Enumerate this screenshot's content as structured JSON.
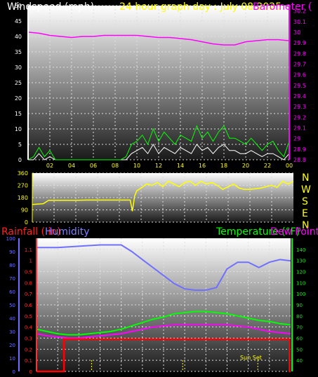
{
  "header": {
    "left_label": "Windspeed (mph)",
    "title": "24 hour graph day : July 08 2025",
    "right_label": "Barometer ("
  },
  "bottom_header": {
    "rain_label": "Rainfall ( in)",
    "humidity_label": "Humidity",
    "temp_label": "Temperature (°F)",
    "dew_label": "Dew Point"
  },
  "compass_letters": [
    "N",
    "W",
    "S",
    "E",
    "N"
  ],
  "sunset_label": "Sun Set",
  "colors": {
    "wind": "#ffffff",
    "gust": "#00ff00",
    "pressure": "#ff00ff",
    "direction": "#ffff00",
    "humidity": "#7070ff",
    "temperature": "#00ff00",
    "dewpoint": "#ff00ff",
    "rain": "#ff0000",
    "rain_axis": "#ff3030",
    "humidity_axis": "#7070ff",
    "temp_axis": "#00ff00"
  },
  "chart_data": [
    {
      "type": "line",
      "name": "wind-and-barometer",
      "xlim": [
        0,
        24
      ],
      "x_ticks": [
        "02",
        "04",
        "06",
        "08",
        "10",
        "12",
        "14",
        "16",
        "18",
        "20",
        "22",
        "00"
      ],
      "y_left_ticks": [
        "0",
        "5",
        "10",
        "15",
        "20",
        "25",
        "30",
        "35",
        "40",
        "45",
        "50"
      ],
      "ylim_left": [
        0,
        50
      ],
      "y_right_ticks": [
        "28.8",
        "28.9",
        "29",
        "29.1",
        "29.2",
        "29.3",
        "29.4",
        "29.5",
        "29.6",
        "29.7",
        "29.8",
        "29.9",
        "30",
        "30.1",
        "30.2"
      ],
      "ylim_right": [
        28.8,
        30.25
      ],
      "series": [
        {
          "name": "barometer",
          "axis": "right",
          "x": [
            0,
            1,
            2,
            3,
            4,
            5,
            6,
            7,
            8,
            9,
            10,
            11,
            12,
            13,
            14,
            15,
            16,
            17,
            18,
            19,
            20,
            21,
            22,
            23,
            24
          ],
          "y": [
            30.0,
            29.99,
            29.97,
            29.96,
            29.95,
            29.96,
            29.96,
            29.97,
            29.97,
            29.97,
            29.97,
            29.96,
            29.95,
            29.95,
            29.94,
            29.93,
            29.91,
            29.89,
            29.88,
            29.88,
            29.91,
            29.92,
            29.93,
            29.93,
            29.92
          ]
        },
        {
          "name": "windspeed",
          "axis": "left",
          "x": [
            0,
            0.5,
            1,
            1.5,
            2,
            2.5,
            3,
            3.5,
            4,
            4.5,
            5,
            5.5,
            6,
            6.5,
            7,
            7.5,
            8,
            8.5,
            9,
            9.5,
            10,
            10.5,
            11,
            11.5,
            12,
            12.5,
            13,
            13.5,
            14,
            14.5,
            15,
            15.5,
            16,
            16.5,
            17,
            17.5,
            18,
            18.5,
            19,
            19.5,
            20,
            20.5,
            21,
            21.5,
            22,
            22.5,
            23,
            23.5,
            24
          ],
          "y": [
            0,
            0,
            2,
            0,
            1,
            0,
            0,
            0,
            0,
            0,
            0,
            0,
            0,
            0,
            0,
            0,
            0,
            0,
            0,
            2,
            3,
            4,
            2,
            5,
            2,
            4,
            3,
            2,
            4,
            3,
            2,
            5,
            3,
            4,
            2,
            4,
            5,
            3,
            3,
            2,
            2,
            3,
            2,
            1,
            2,
            2,
            1,
            0,
            2
          ]
        },
        {
          "name": "gust",
          "axis": "left",
          "x": [
            0,
            0.5,
            1,
            1.5,
            2,
            2.5,
            3,
            3.5,
            4,
            4.5,
            5,
            5.5,
            6,
            6.5,
            7,
            7.5,
            8,
            8.5,
            9,
            9.5,
            10,
            10.5,
            11,
            11.5,
            12,
            12.5,
            13,
            13.5,
            14,
            14.5,
            15,
            15.5,
            16,
            16.5,
            17,
            17.5,
            18,
            18.5,
            19,
            19.5,
            20,
            20.5,
            21,
            21.5,
            22,
            22.5,
            23,
            23.5,
            24
          ],
          "y": [
            0,
            1,
            4,
            1,
            3,
            0,
            0,
            0,
            0,
            0,
            0,
            0,
            0,
            0,
            0,
            0,
            0,
            0,
            1,
            5,
            6,
            8,
            5,
            10,
            6,
            9,
            7,
            5,
            8,
            7,
            6,
            11,
            7,
            9,
            6,
            9,
            11,
            7,
            7,
            6,
            5,
            7,
            5,
            3,
            5,
            6,
            3,
            1,
            6
          ]
        }
      ]
    },
    {
      "type": "line",
      "name": "wind-direction",
      "xlim": [
        0,
        24
      ],
      "y_ticks": [
        "0",
        "90",
        "180",
        "270",
        "360"
      ],
      "ylim": [
        0,
        360
      ],
      "series": [
        {
          "name": "direction",
          "x": [
            0,
            1,
            1.5,
            2,
            3,
            4,
            5,
            6,
            7,
            8,
            9,
            9.2,
            9.4,
            9.6,
            10,
            10.5,
            11,
            11.5,
            12,
            12.5,
            13,
            13.5,
            14,
            14.5,
            15,
            15.5,
            16,
            16.5,
            17,
            17.5,
            18,
            18.5,
            19,
            19.5,
            20,
            20.5,
            21,
            21.5,
            22,
            22.5,
            23,
            23.5,
            24
          ],
          "y": [
            130,
            135,
            160,
            160,
            160,
            160,
            162,
            162,
            162,
            162,
            162,
            80,
            190,
            230,
            250,
            280,
            270,
            290,
            260,
            300,
            280,
            260,
            290,
            300,
            270,
            300,
            280,
            290,
            270,
            240,
            260,
            280,
            250,
            240,
            240,
            245,
            250,
            260,
            270,
            255,
            300,
            280,
            300
          ]
        }
      ]
    },
    {
      "type": "line",
      "name": "temperature-humidity-rain",
      "xlim": [
        0,
        24
      ],
      "y_rain_ticks": [
        "0",
        "0.1",
        "0.2",
        "0.3",
        "0.4",
        "0.5",
        "0.6",
        "0.7",
        "0.8",
        "0.9",
        "1",
        "1.1"
      ],
      "ylim_rain": [
        0,
        1.2
      ],
      "y_humidity_ticks": [
        "0",
        "10",
        "20",
        "30",
        "40",
        "50",
        "60",
        "70",
        "80",
        "90",
        "100"
      ],
      "ylim_humidity": [
        0,
        100
      ],
      "y_temp_ticks": [
        "40",
        "50",
        "60",
        "70",
        "80",
        "90",
        "100",
        "110",
        "120",
        "130",
        "140"
      ],
      "ylim_temp": [
        30,
        150
      ],
      "series": [
        {
          "name": "humidity",
          "axis": "humidity",
          "x": [
            0,
            2,
            4,
            6,
            7,
            8,
            9,
            10,
            11,
            12,
            13,
            14,
            15,
            16,
            17,
            18,
            19,
            20,
            21,
            22,
            23,
            24
          ],
          "y": [
            93,
            93,
            94,
            95,
            95,
            95,
            90,
            84,
            78,
            72,
            66,
            62,
            61,
            61,
            63,
            77,
            82,
            82,
            78,
            82,
            84,
            83
          ]
        },
        {
          "name": "temperature",
          "axis": "temp",
          "x": [
            0,
            1,
            2,
            3,
            4,
            5,
            6,
            7,
            8,
            9,
            10,
            11,
            12,
            13,
            14,
            15,
            16,
            17,
            18,
            19,
            20,
            21,
            22,
            23,
            24
          ],
          "y": [
            68,
            66,
            64,
            63,
            63,
            64,
            65,
            66,
            68,
            71,
            74,
            77,
            79,
            82,
            83,
            84,
            84,
            83,
            82,
            80,
            78,
            76,
            75,
            73,
            72
          ]
        },
        {
          "name": "dewpoint",
          "axis": "temp",
          "x": [
            0,
            1,
            2,
            3,
            4,
            5,
            6,
            7,
            8,
            9,
            10,
            11,
            12,
            13,
            14,
            15,
            16,
            17,
            18,
            19,
            20,
            21,
            22,
            23,
            24
          ],
          "y": [
            64,
            62,
            61,
            60,
            60,
            61,
            62,
            63,
            64,
            66,
            68,
            70,
            71,
            72,
            72,
            72,
            72,
            72,
            72,
            71,
            70,
            68,
            66,
            65,
            64
          ]
        },
        {
          "name": "rainfall",
          "axis": "rain",
          "x": [
            0,
            1,
            2,
            2.6,
            2.6,
            4,
            6,
            8,
            10,
            12,
            14,
            16,
            18,
            20,
            22,
            23.9,
            23.9,
            24
          ],
          "y": [
            0,
            0,
            0,
            0,
            0.29,
            0.29,
            0.29,
            0.29,
            0.29,
            0.29,
            0.29,
            0.29,
            0.29,
            0.29,
            0.29,
            0.29,
            0,
            0
          ]
        }
      ],
      "markers": [
        {
          "name": "sunrise",
          "x": 5.2
        },
        {
          "name": "solar-noon",
          "x": 13.8
        },
        {
          "name": "sunset",
          "x": 20.9
        }
      ]
    }
  ]
}
